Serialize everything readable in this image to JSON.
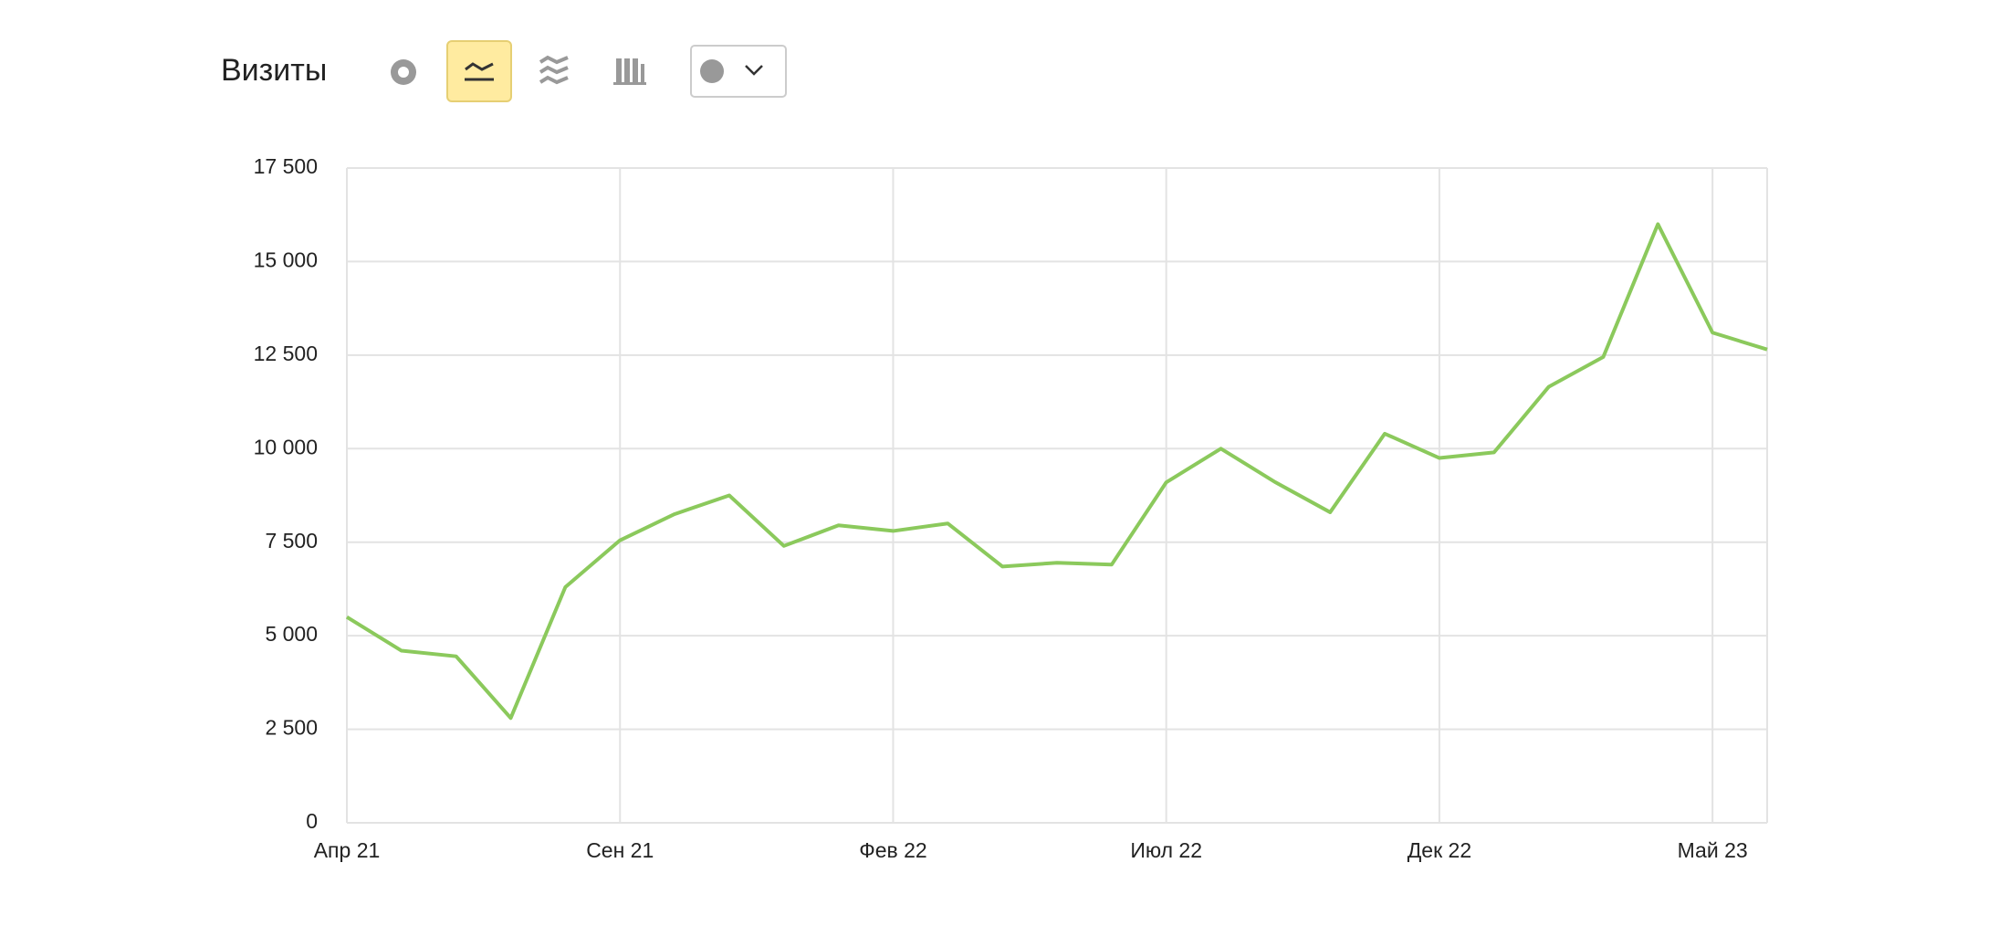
{
  "chart_data": {
    "type": "line",
    "title": "Визиты",
    "categories": [
      "Апр 21",
      null,
      null,
      null,
      null,
      "Сен 21",
      null,
      null,
      null,
      null,
      "Фев 22",
      null,
      null,
      null,
      null,
      "Июл 22",
      null,
      null,
      null,
      null,
      "Дек 22",
      null,
      null,
      null,
      null,
      "Май 23",
      null
    ],
    "series": [
      {
        "name": "Визиты",
        "color": "#8bc95c",
        "values": [
          5500,
          4600,
          4450,
          2800,
          6300,
          7550,
          8250,
          8750,
          7400,
          7950,
          7800,
          8000,
          6850,
          6950,
          6900,
          9100,
          10000,
          9100,
          8300,
          10400,
          9750,
          9900,
          11650,
          12450,
          16000,
          13100,
          12650
        ]
      }
    ],
    "ylim": [
      0,
      17500
    ],
    "yticks": [
      0,
      {
        "value": 2500,
        "label": "2 500"
      },
      {
        "value": 5000,
        "label": "5 000"
      },
      {
        "value": 7500,
        "label": "7 500"
      },
      {
        "value": 10000,
        "label": "10 000"
      },
      {
        "value": 12500,
        "label": "12 500"
      },
      {
        "value": 15000,
        "label": "15 000"
      },
      {
        "value": 17500,
        "label": "17 500"
      }
    ],
    "grid": true
  }
}
